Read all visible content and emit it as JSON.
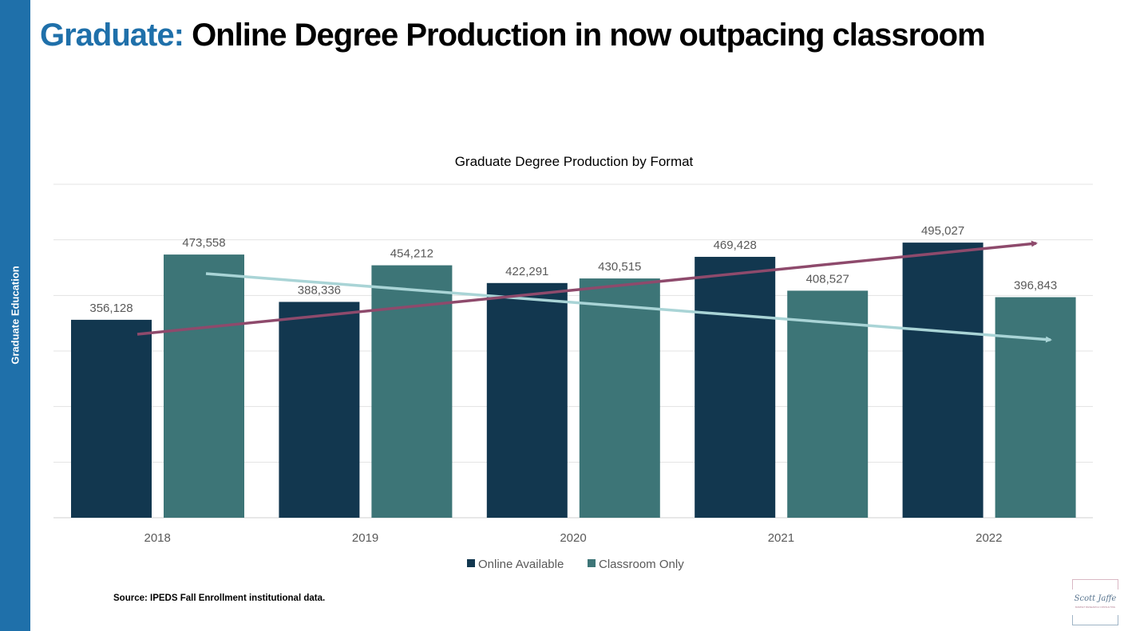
{
  "sidebar": {
    "label": "Graduate Education",
    "color": "#1f70aa"
  },
  "title": {
    "highlight": "Graduate:",
    "rest": "Online Degree Production in now outpacing classroom"
  },
  "source": "Source: IPEDS Fall Enrollment institutional data.",
  "logo": {
    "name": "Scott Jaffe",
    "tagline": "MARKET RESEARCH CONSULTING"
  },
  "chart_data": {
    "type": "bar",
    "title": "Graduate Degree Production by Format",
    "categories": [
      "2018",
      "2019",
      "2020",
      "2021",
      "2022"
    ],
    "series": [
      {
        "name": "Online Available",
        "color": "#12374f",
        "values": [
          356128,
          388336,
          422291,
          469428,
          495027
        ],
        "labels": [
          "356,128",
          "388,336",
          "422,291",
          "469,428",
          "495,027"
        ],
        "trend": "increasing",
        "trend_color": "#8e4a6c"
      },
      {
        "name": "Classroom Only",
        "color": "#3d7577",
        "values": [
          473558,
          454212,
          430515,
          408527,
          396843
        ],
        "labels": [
          "473,558",
          "454,212",
          "430,515",
          "408,527",
          "396,843"
        ],
        "trend": "decreasing",
        "trend_color": "#a9d4d6"
      }
    ],
    "ylim": [
      0,
      600000
    ],
    "grid": true,
    "legend": "bottom",
    "xlabel": "",
    "ylabel": ""
  }
}
